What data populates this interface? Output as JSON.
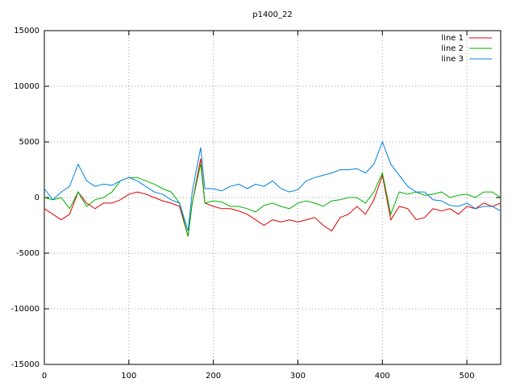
{
  "chart_data": {
    "type": "line",
    "title": "p1400_22",
    "x": [
      0,
      10,
      20,
      30,
      40,
      50,
      60,
      70,
      80,
      90,
      100,
      110,
      120,
      130,
      140,
      150,
      160,
      170,
      175,
      185,
      190,
      200,
      210,
      220,
      230,
      240,
      250,
      260,
      270,
      280,
      290,
      300,
      310,
      320,
      330,
      340,
      350,
      360,
      370,
      380,
      390,
      400,
      410,
      420,
      430,
      440,
      450,
      460,
      470,
      480,
      490,
      500,
      510,
      520,
      530,
      540
    ],
    "series": [
      {
        "name": "line 1",
        "color": "#e00000",
        "values": [
          -1000,
          -1500,
          -2000,
          -1500,
          500,
          -500,
          -1000,
          -500,
          -500,
          -200,
          300,
          500,
          300,
          0,
          -300,
          -500,
          -800,
          -3500,
          -500,
          3500,
          -500,
          -800,
          -1000,
          -1000,
          -1200,
          -1500,
          -2000,
          -2500,
          -2000,
          -2200,
          -2000,
          -2200,
          -2000,
          -1800,
          -2500,
          -3000,
          -1800,
          -1500,
          -800,
          -1500,
          -200,
          2000,
          -2000,
          -800,
          -1000,
          -2000,
          -1800,
          -1000,
          -1200,
          -1000,
          -1500,
          -800,
          -1000,
          -500,
          -800,
          -500
        ]
      },
      {
        "name": "line 2",
        "color": "#00b000",
        "values": [
          0,
          -200,
          0,
          -1000,
          500,
          -800,
          -200,
          0,
          500,
          1500,
          1800,
          1800,
          1500,
          1200,
          800,
          500,
          -500,
          -3500,
          -500,
          3000,
          -500,
          -300,
          -400,
          -800,
          -800,
          -1000,
          -1300,
          -700,
          -500,
          -800,
          -1000,
          -500,
          -300,
          -500,
          -800,
          -300,
          -200,
          0,
          0,
          -500,
          500,
          2200,
          -1500,
          500,
          300,
          500,
          200,
          300,
          500,
          0,
          200,
          300,
          0,
          500,
          500,
          0
        ]
      },
      {
        "name": "line 3",
        "color": "#0080e0",
        "values": [
          800,
          -200,
          500,
          1000,
          3000,
          1500,
          1000,
          1200,
          1100,
          1500,
          1800,
          1500,
          1000,
          500,
          300,
          -200,
          -500,
          -3000,
          500,
          4500,
          800,
          800,
          600,
          1000,
          1200,
          800,
          1200,
          1000,
          1500,
          800,
          500,
          700,
          1500,
          1800,
          2000,
          2200,
          2500,
          2500,
          2600,
          2200,
          3000,
          5000,
          3000,
          2000,
          1000,
          500,
          500,
          -200,
          -300,
          -700,
          -800,
          -500,
          -1000,
          -800,
          -800,
          -1200
        ]
      }
    ],
    "xlim": [
      0,
      540
    ],
    "ylim": [
      -15000,
      15000
    ],
    "xticks": [
      0,
      100,
      200,
      300,
      400,
      500
    ],
    "yticks": [
      -15000,
      -10000,
      -5000,
      0,
      5000,
      10000,
      15000
    ],
    "grid": true,
    "legend": "top-right"
  }
}
